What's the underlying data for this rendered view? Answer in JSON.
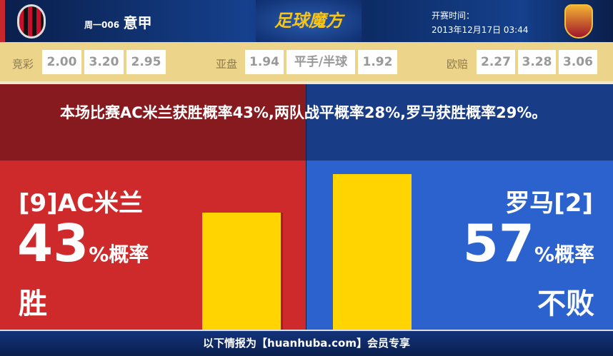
{
  "header": {
    "league_code": "周一006",
    "league": "意甲",
    "brand": "足球魔方",
    "time_label": "开赛时间：",
    "time": "2013年12月17日 03:44"
  },
  "odds": {
    "jingcai": {
      "label": "竞彩",
      "values": [
        "2.00",
        "3.20",
        "2.95"
      ]
    },
    "asian": {
      "label": "亚盘",
      "values": [
        "1.94",
        "平手/半球",
        "1.92"
      ]
    },
    "euro": {
      "label": "欧赔",
      "values": [
        "2.27",
        "3.28",
        "3.06"
      ]
    }
  },
  "banner": {
    "text": "本场比赛AC米兰获胜概率43%,两队战平概率28%,罗马获胜概率29%。"
  },
  "home": {
    "name": "[9]AC米兰",
    "pct": "43",
    "pct_suffix": "%概率",
    "result": "胜",
    "value": 43,
    "color": "#cf2a2b"
  },
  "away": {
    "name": "罗马[2]",
    "pct": "57",
    "pct_suffix": "%概率",
    "result": "不败",
    "value": 57,
    "color": "#2b62cd"
  },
  "footer": {
    "text": "以下情报为【huanhuba.com】会员专享"
  }
}
